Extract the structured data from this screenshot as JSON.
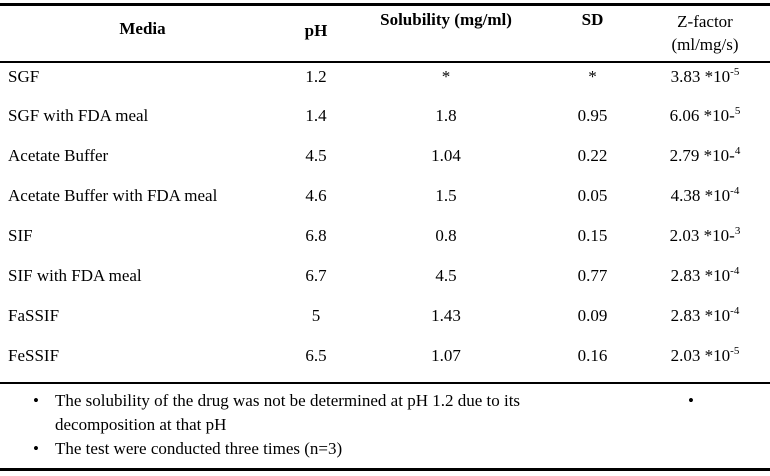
{
  "document": {
    "background_color": "#ffffff",
    "text_color": "#000000",
    "rule_color": "#000000"
  },
  "table": {
    "header": {
      "media": "Media",
      "ph": "pH",
      "solubility": "Solubility (mg/ml)",
      "sd": "SD",
      "zfactor_line1": "Z-factor",
      "zfactor_line2": "(ml/mg/s)"
    },
    "rows": [
      {
        "media": "SGF",
        "ph": "1.2",
        "solubility": "*",
        "sd": "*",
        "z_base": "3.83 *10",
        "z_sup": "-5"
      },
      {
        "media": "SGF with FDA meal",
        "ph": "1.4",
        "solubility": "1.8",
        "sd": "0.95",
        "z_base": "6.06 *10-",
        "z_sup": "5"
      },
      {
        "media": "Acetate Buffer",
        "ph": "4.5",
        "solubility": "1.04",
        "sd": "0.22",
        "z_base": "2.79 *10-",
        "z_sup": "4"
      },
      {
        "media": "Acetate Buffer with FDA meal",
        "ph": "4.6",
        "solubility": "1.5",
        "sd": "0.05",
        "z_base": "4.38 *10",
        "z_sup": "-4"
      },
      {
        "media": "SIF",
        "ph": "6.8",
        "solubility": "0.8",
        "sd": "0.15",
        "z_base": "2.03 *10-",
        "z_sup": "3"
      },
      {
        "media": "SIF with FDA meal",
        "ph": "6.7",
        "solubility": "4.5",
        "sd": "0.77",
        "z_base": "2.83 *10",
        "z_sup": "-4"
      },
      {
        "media": "FaSSIF",
        "ph": "5",
        "solubility": "1.43",
        "sd": "0.09",
        "z_base": "2.83 *10",
        "z_sup": "-4"
      },
      {
        "media": "FeSSIF",
        "ph": "6.5",
        "solubility": "1.07",
        "sd": "0.16",
        "z_base": "2.03 *10",
        "z_sup": "-5"
      }
    ]
  },
  "footnotes": {
    "items": [
      "The solubility of the drug was not be determined at pH 1.2 due to its decomposition at that pH",
      "The test were conducted three times (n=3)"
    ],
    "right_bullet": "•"
  }
}
